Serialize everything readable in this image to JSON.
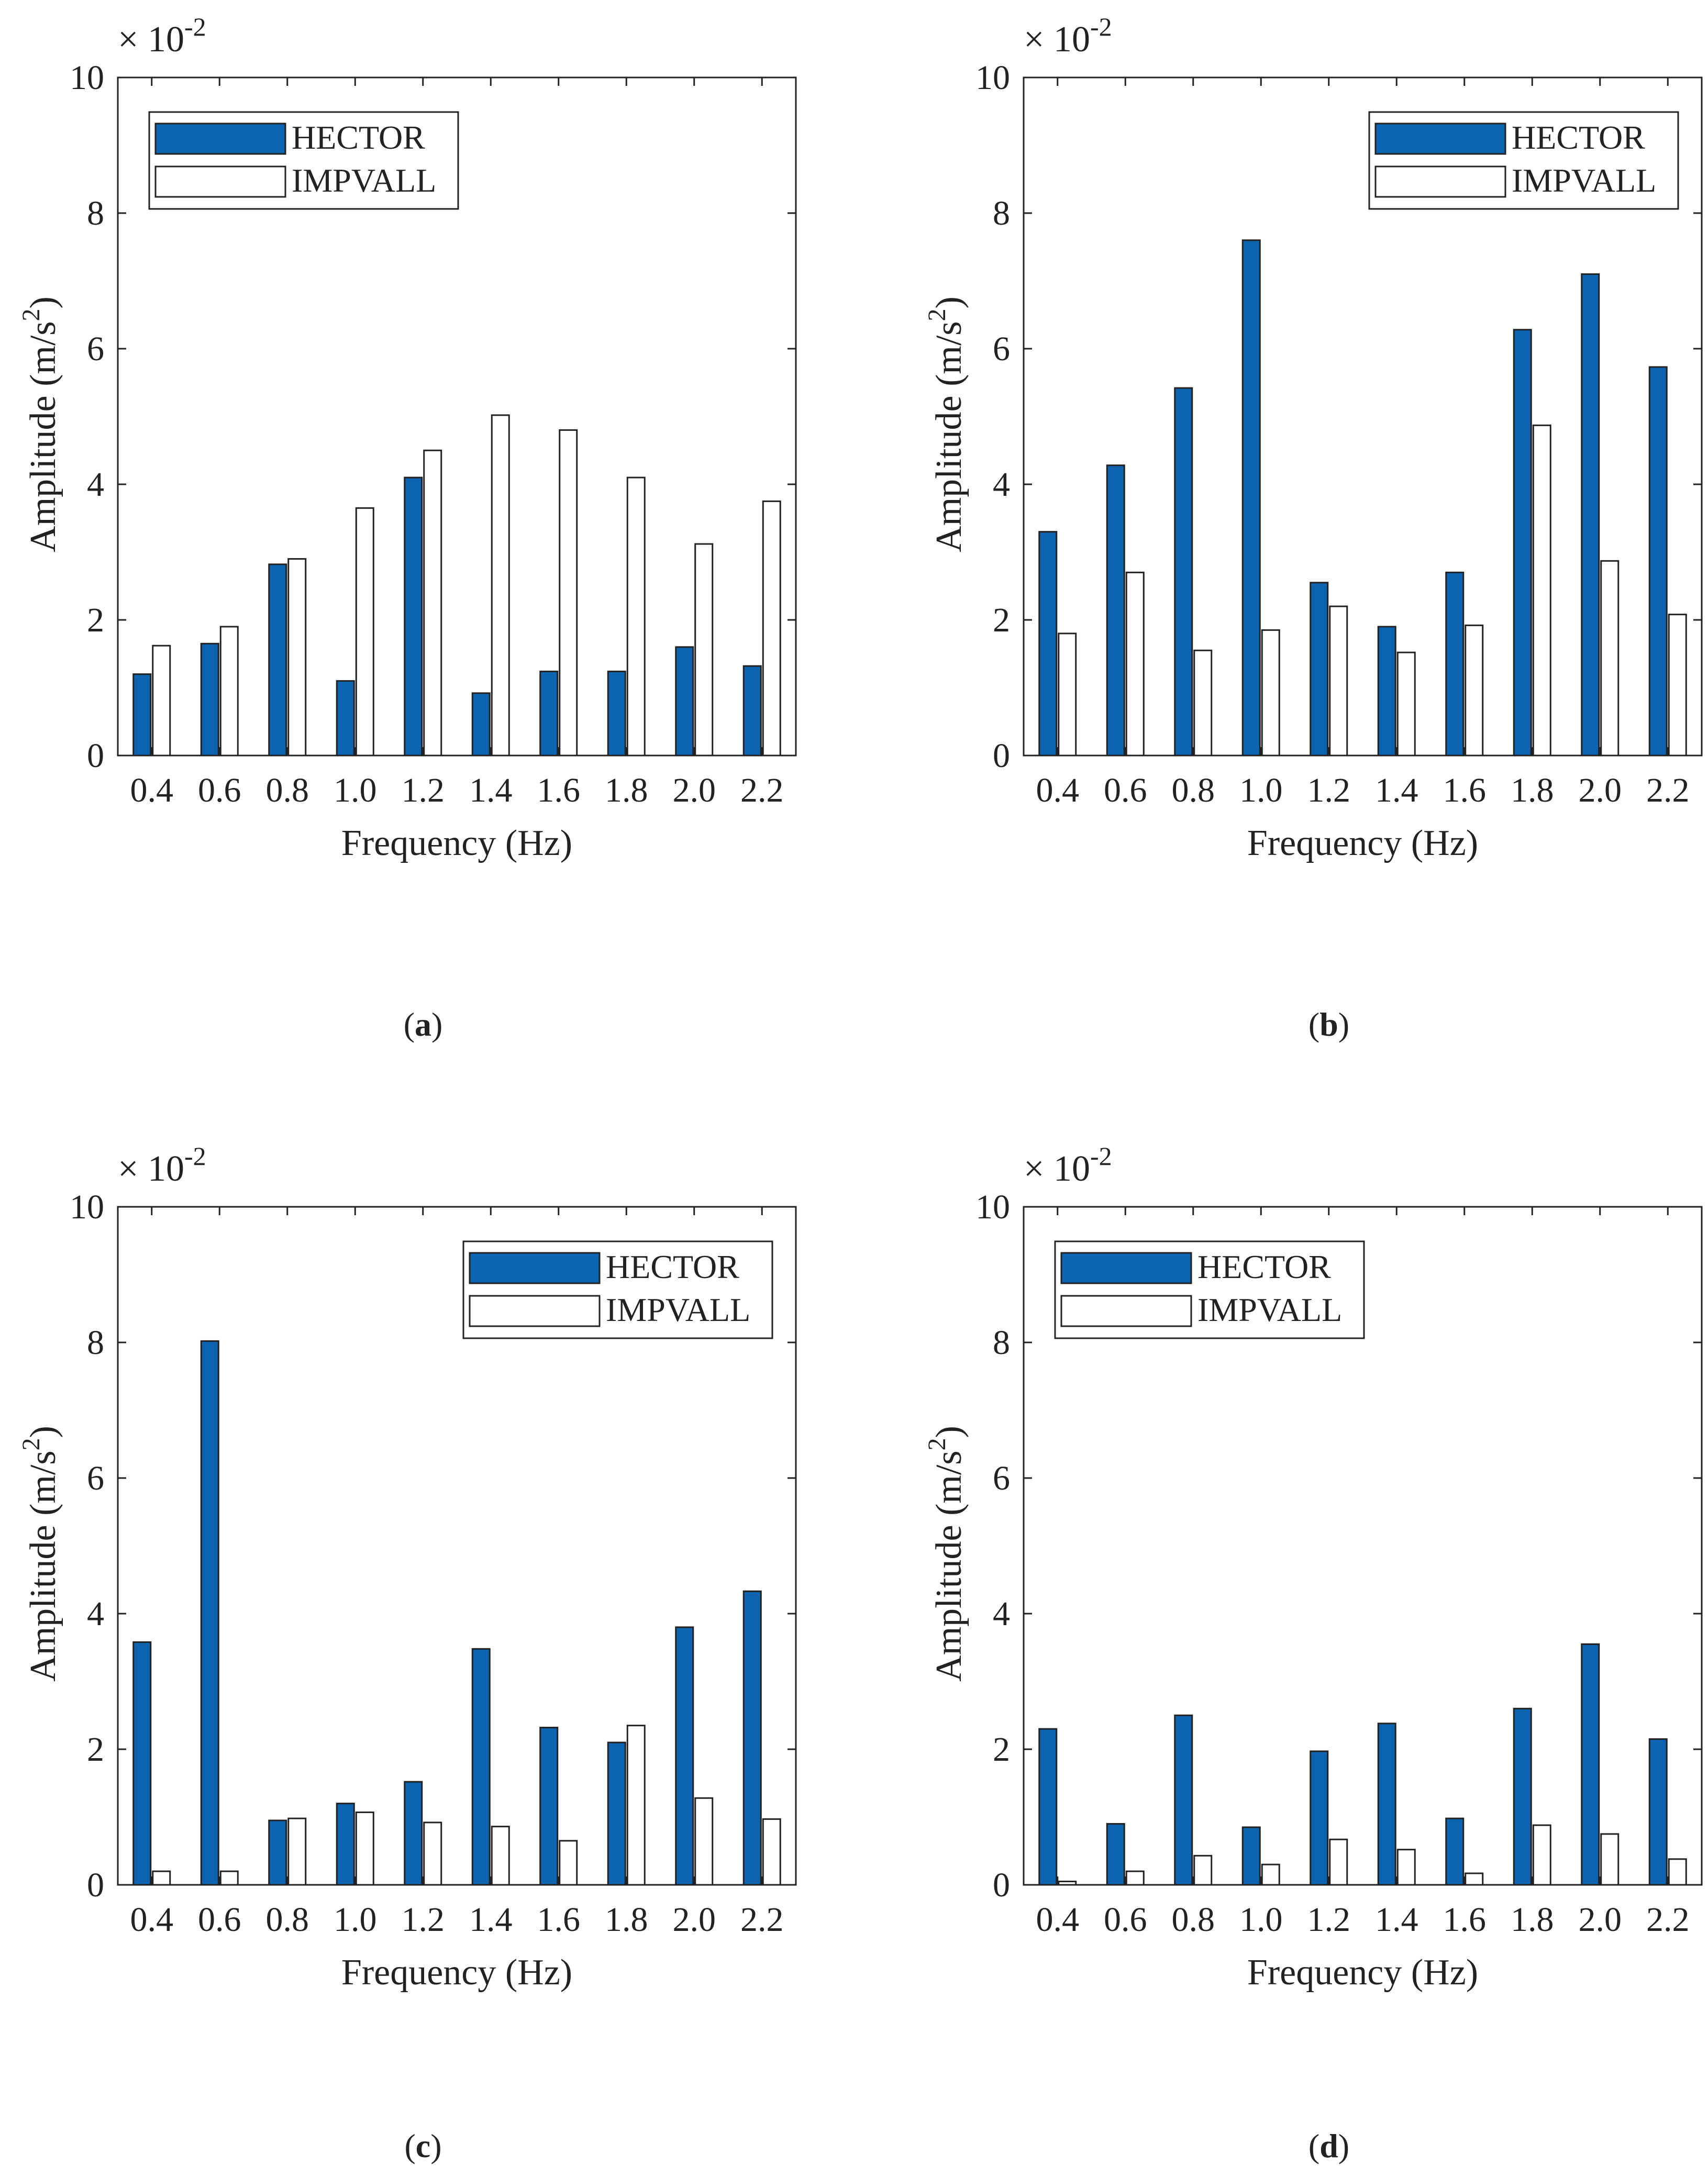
{
  "colors": {
    "hector": "#0f64b0",
    "impvall": "#ffffff",
    "axis": "#222222"
  },
  "common": {
    "xlabel": "Frequency (Hz)",
    "ylabel_main": "Amplitude (m/s",
    "ylabel_sup": "2",
    "ylabel_close": ")",
    "exp_prefix": "× 10",
    "exp_sup": "-2",
    "legend": [
      "HECTOR",
      "IMPVALL"
    ],
    "xticks": [
      "0.4",
      "0.6",
      "0.8",
      "1.0",
      "1.2",
      "1.4",
      "1.6",
      "1.8",
      "2.0",
      "2.2"
    ],
    "yticks": [
      "0",
      "2",
      "4",
      "6",
      "8",
      "10"
    ]
  },
  "chart_data": [
    {
      "type": "bar",
      "caption_letter": "a",
      "title": "",
      "xlabel": "Frequency (Hz)",
      "ylabel": "Amplitude (m/s2)",
      "multiplier": "× 10-2",
      "ylim": [
        0,
        10
      ],
      "legend_position": "top-left",
      "categories": [
        "0.4",
        "0.6",
        "0.8",
        "1.0",
        "1.2",
        "1.4",
        "1.6",
        "1.8",
        "2.0",
        "2.2"
      ],
      "series": [
        {
          "name": "HECTOR",
          "values": [
            1.2,
            1.65,
            2.82,
            1.1,
            4.1,
            0.92,
            1.24,
            1.24,
            1.6,
            1.32
          ]
        },
        {
          "name": "IMPVALL",
          "values": [
            1.62,
            1.9,
            2.9,
            3.65,
            4.5,
            5.02,
            4.8,
            4.1,
            3.12,
            3.75
          ]
        }
      ]
    },
    {
      "type": "bar",
      "caption_letter": "b",
      "title": "",
      "xlabel": "Frequency (Hz)",
      "ylabel": "Amplitude (m/s2)",
      "multiplier": "× 10-2",
      "ylim": [
        0,
        10
      ],
      "legend_position": "top-right",
      "categories": [
        "0.4",
        "0.6",
        "0.8",
        "1.0",
        "1.2",
        "1.4",
        "1.6",
        "1.8",
        "2.0",
        "2.2"
      ],
      "series": [
        {
          "name": "HECTOR",
          "values": [
            3.3,
            4.28,
            5.42,
            7.6,
            2.55,
            1.9,
            2.7,
            6.28,
            7.1,
            5.73
          ]
        },
        {
          "name": "IMPVALL",
          "values": [
            1.8,
            2.7,
            1.55,
            1.85,
            2.2,
            1.52,
            1.92,
            4.87,
            2.87,
            2.08
          ]
        }
      ]
    },
    {
      "type": "bar",
      "caption_letter": "c",
      "title": "",
      "xlabel": "Frequency (Hz)",
      "ylabel": "Amplitude (m/s2)",
      "multiplier": "× 10-2",
      "ylim": [
        0,
        10
      ],
      "legend_position": "top-right",
      "categories": [
        "0.4",
        "0.6",
        "0.8",
        "1.0",
        "1.2",
        "1.4",
        "1.6",
        "1.8",
        "2.0",
        "2.2"
      ],
      "series": [
        {
          "name": "HECTOR",
          "values": [
            3.58,
            8.02,
            0.95,
            1.2,
            1.52,
            3.48,
            2.32,
            2.1,
            3.8,
            4.33
          ]
        },
        {
          "name": "IMPVALL",
          "values": [
            0.2,
            0.2,
            0.98,
            1.07,
            0.92,
            0.86,
            0.65,
            2.35,
            1.28,
            0.97
          ]
        }
      ]
    },
    {
      "type": "bar",
      "caption_letter": "d",
      "title": "",
      "xlabel": "Frequency (Hz)",
      "ylabel": "Amplitude (m/s2)",
      "multiplier": "× 10-2",
      "ylim": [
        0,
        10
      ],
      "legend_position": "top-left",
      "categories": [
        "0.4",
        "0.6",
        "0.8",
        "1.0",
        "1.2",
        "1.4",
        "1.6",
        "1.8",
        "2.0",
        "2.2"
      ],
      "series": [
        {
          "name": "HECTOR",
          "values": [
            2.3,
            0.9,
            2.5,
            0.85,
            1.97,
            2.38,
            0.98,
            2.6,
            3.55,
            2.15
          ]
        },
        {
          "name": "IMPVALL",
          "values": [
            0.05,
            0.2,
            0.43,
            0.3,
            0.67,
            0.52,
            0.17,
            0.88,
            0.75,
            0.38
          ]
        }
      ]
    }
  ]
}
